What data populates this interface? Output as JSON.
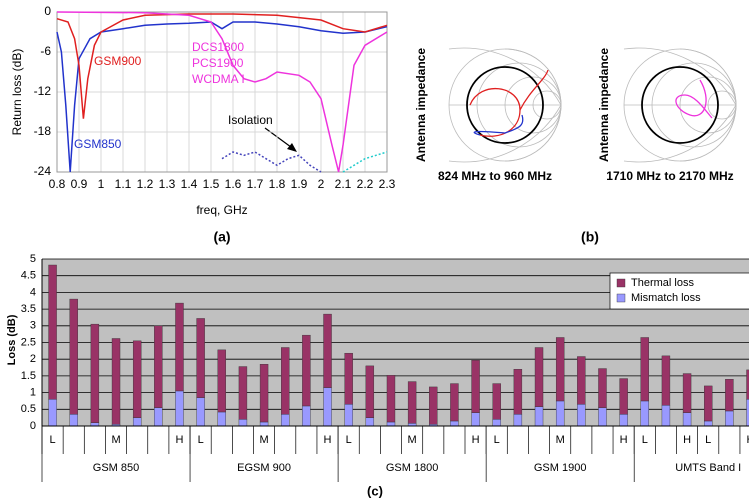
{
  "chart_data": [
    {
      "type": "line",
      "caption": "(a)",
      "xlabel": "freq, GHz",
      "ylabel": "Return loss (dB)",
      "xlim": [
        0.8,
        2.3
      ],
      "xticks": [
        0.8,
        0.9,
        1,
        1.1,
        1.2,
        1.3,
        1.4,
        1.5,
        1.6,
        1.7,
        1.8,
        1.9,
        2,
        2.1,
        2.2,
        2.3
      ],
      "ylim": [
        -24,
        0
      ],
      "yticks": [
        -24,
        -18,
        -12,
        -6,
        0
      ],
      "grid": true,
      "series": [
        {
          "name": "GSM850",
          "color": "#2233cc",
          "x": [
            0.8,
            0.82,
            0.84,
            0.86,
            0.88,
            0.9,
            0.95,
            1.0,
            1.1,
            1.2,
            1.3,
            1.4,
            1.5,
            1.55,
            1.6,
            1.7,
            1.8,
            1.9,
            2.0,
            2.1,
            2.2,
            2.3
          ],
          "values": [
            -3,
            -6,
            -14,
            -24,
            -14,
            -7,
            -4,
            -3,
            -2.5,
            -2,
            -1.8,
            -1.7,
            -1.5,
            -2.5,
            -1.5,
            -1.5,
            -1.8,
            -2.2,
            -2.8,
            -3.2,
            -3,
            -2.2
          ]
        },
        {
          "name": "GSM900",
          "color": "#e02020",
          "x": [
            0.8,
            0.85,
            0.88,
            0.9,
            0.92,
            0.94,
            0.97,
            1.0,
            1.1,
            1.2,
            1.4,
            1.6,
            1.8,
            2.0,
            2.1,
            2.2,
            2.3
          ],
          "values": [
            -1,
            -1.5,
            -4,
            -8,
            -16,
            -10,
            -5,
            -3,
            -1.2,
            -0.5,
            -0.3,
            -0.3,
            -0.5,
            -1.2,
            -2.5,
            -3,
            -2
          ]
        },
        {
          "color": "#ee33dd",
          "x": [
            0.8,
            1.2,
            1.4,
            1.5,
            1.55,
            1.6,
            1.65,
            1.7,
            1.75,
            1.8,
            1.9,
            1.95,
            2.0,
            2.05,
            2.08,
            2.1,
            2.15,
            2.2,
            2.3
          ],
          "values": [
            0,
            -0.1,
            -0.5,
            -1.5,
            -4,
            -8,
            -10,
            -10.5,
            -10,
            -9,
            -9.5,
            -10.5,
            -13,
            -20,
            -24,
            -20,
            -8,
            -5,
            -3
          ]
        },
        {
          "color": "#4444bb",
          "style": "dotted",
          "x": [
            1.55,
            1.6,
            1.65,
            1.7,
            1.75,
            1.8,
            1.85,
            1.9,
            1.95,
            2.0
          ],
          "values": [
            -22,
            -21,
            -21.5,
            -21,
            -22,
            -23,
            -22,
            -21.5,
            -23,
            -24
          ]
        },
        {
          "color": "#22cccc",
          "style": "dotted",
          "x": [
            2.1,
            2.15,
            2.2,
            2.25,
            2.3
          ],
          "values": [
            -24,
            -23,
            -22,
            -21.5,
            -21
          ]
        }
      ],
      "annotations": [
        "DCS1800",
        "PCS1900",
        "WCDMA I",
        "Isolation"
      ]
    },
    {
      "type": "smith",
      "ylabel": "Antenna impedance",
      "title": "824 MHz to 960 MHz"
    },
    {
      "type": "smith",
      "ylabel": "Antenna impedance",
      "title": "1710 MHz to 2170 MHz",
      "caption": "(b)"
    },
    {
      "type": "bar",
      "stacked": true,
      "caption": "(c)",
      "ylabel": "Loss (dB)",
      "ylim": [
        0,
        5
      ],
      "yticks": [
        0,
        0.5,
        1,
        1.5,
        2,
        2.5,
        3,
        3.5,
        4,
        4.5,
        5
      ],
      "grid": true,
      "legend": "top-right",
      "categories": [
        "L",
        null,
        null,
        "M",
        null,
        null,
        "H",
        "L",
        null,
        null,
        "M",
        null,
        null,
        "H",
        "L",
        null,
        null,
        "M",
        null,
        null,
        "H",
        "L",
        null,
        null,
        "M",
        null,
        null,
        "H",
        "L",
        null,
        "H",
        "L",
        null,
        "H"
      ],
      "groups": [
        "GSM 850",
        "EGSM 900",
        "GSM 1800",
        "GSM 1900",
        "UMTS Band I"
      ],
      "series": [
        {
          "name": "Mismatch loss",
          "color": "#9999ff",
          "values": [
            0.8,
            0.35,
            0.1,
            0.05,
            0.25,
            0.55,
            1.05,
            0.85,
            0.42,
            0.2,
            0.12,
            0.35,
            0.6,
            1.15,
            0.65,
            0.25,
            0.12,
            0.08,
            0.05,
            0.15,
            0.4,
            0.2,
            0.35,
            0.58,
            0.75,
            0.65,
            0.55,
            0.35,
            0.75,
            0.62,
            0.4,
            0.15,
            0.45,
            0.8
          ]
        },
        {
          "name": "Thermal loss",
          "color": "#993366",
          "values": [
            4.02,
            3.45,
            2.95,
            2.57,
            2.3,
            2.45,
            2.63,
            2.37,
            1.86,
            1.58,
            1.73,
            2.0,
            2.12,
            2.2,
            1.53,
            1.55,
            1.4,
            1.25,
            1.12,
            1.12,
            1.57,
            1.07,
            1.35,
            1.77,
            1.9,
            1.43,
            1.17,
            1.07,
            1.9,
            1.48,
            1.17,
            1.05,
            0.95,
            0.88
          ]
        }
      ]
    }
  ]
}
